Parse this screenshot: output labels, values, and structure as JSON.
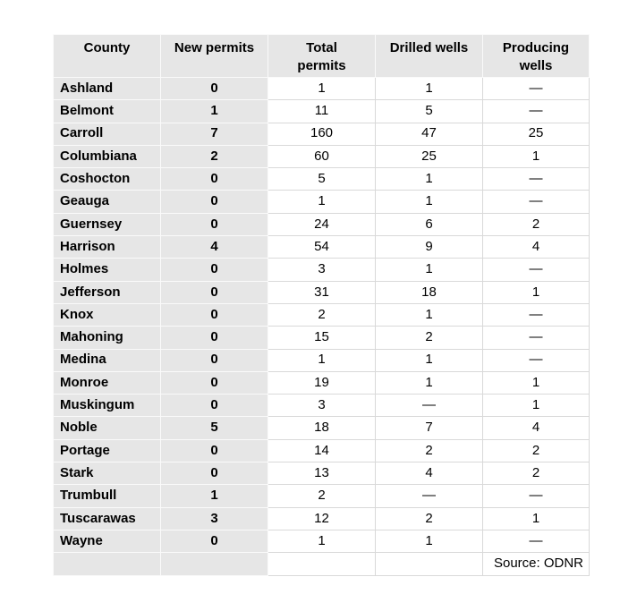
{
  "chart_data": {
    "type": "table",
    "columns": [
      "County",
      "New permits",
      "Total\npermits",
      "Drilled wells",
      "Producing\nwells"
    ],
    "rows": [
      [
        "Ashland",
        "0",
        "1",
        "1",
        "—"
      ],
      [
        "Belmont",
        "1",
        "11",
        "5",
        "—"
      ],
      [
        "Carroll",
        "7",
        "160",
        "47",
        "25"
      ],
      [
        "Columbiana",
        "2",
        "60",
        "25",
        "1"
      ],
      [
        "Coshocton",
        "0",
        "5",
        "1",
        "—"
      ],
      [
        "Geauga",
        "0",
        "1",
        "1",
        "—"
      ],
      [
        "Guernsey",
        "0",
        "24",
        "6",
        "2"
      ],
      [
        "Harrison",
        "4",
        "54",
        "9",
        "4"
      ],
      [
        "Holmes",
        "0",
        "3",
        "1",
        "—"
      ],
      [
        "Jefferson",
        "0",
        "31",
        "18",
        "1"
      ],
      [
        "Knox",
        "0",
        "2",
        "1",
        "—"
      ],
      [
        "Mahoning",
        "0",
        "15",
        "2",
        "—"
      ],
      [
        "Medina",
        "0",
        "1",
        "1",
        "—"
      ],
      [
        "Monroe",
        "0",
        "19",
        "1",
        "1"
      ],
      [
        "Muskingum",
        "0",
        "3",
        "—",
        "1"
      ],
      [
        "Noble",
        "5",
        "18",
        "7",
        "4"
      ],
      [
        "Portage",
        "0",
        "14",
        "2",
        "2"
      ],
      [
        "Stark",
        "0",
        "13",
        "4",
        "2"
      ],
      [
        "Trumbull",
        "1",
        "2",
        "—",
        "—"
      ],
      [
        "Tuscarawas",
        "3",
        "12",
        "2",
        "1"
      ],
      [
        "Wayne",
        "0",
        "1",
        "1",
        "—"
      ]
    ],
    "source_note": "Source: ODNR",
    "colors": {
      "header_fill": "#e6e6e6",
      "column_fill": "#e6e6e6",
      "gridline": "#d9d9d9",
      "text": "#000000"
    },
    "layout": {
      "header_bold": true,
      "gray_columns": [
        "County",
        "New permits"
      ],
      "missing_value_glyph": "—"
    }
  }
}
